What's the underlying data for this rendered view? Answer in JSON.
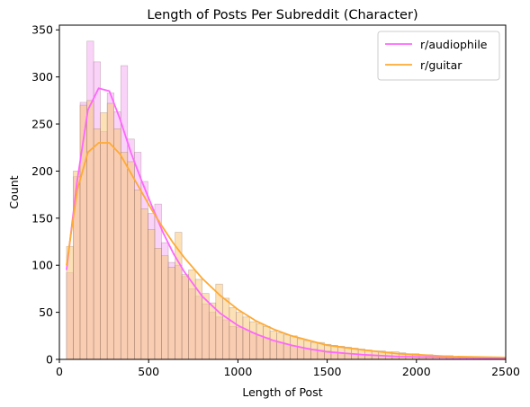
{
  "chart_data": {
    "type": "histogram",
    "title": "Length of Posts Per Subreddit (Character)",
    "xlabel": "Length of Post",
    "ylabel": "Count",
    "xlim": [
      0,
      2500
    ],
    "ylim": [
      0,
      355
    ],
    "xticks": [
      "0",
      "500",
      "1000",
      "1500",
      "2000",
      "2500"
    ],
    "yticks": [
      "0",
      "50",
      "100",
      "150",
      "200",
      "250",
      "300",
      "350"
    ],
    "legend_position": "top-right",
    "grid": false,
    "bin_start": 40,
    "bin_width": 38,
    "series": [
      {
        "name": "r/audiophile",
        "color": "#ff66ff",
        "fill": "#f6a8f4",
        "counts": [
          92,
          194,
          273,
          338,
          316,
          242,
          283,
          263,
          312,
          234,
          220,
          189,
          155,
          165,
          124,
          103,
          100,
          88,
          75,
          67,
          59,
          50,
          45,
          42,
          35,
          34,
          31,
          28,
          25,
          23,
          20,
          18,
          16,
          14,
          13,
          12,
          11,
          10,
          9,
          8,
          7,
          6,
          6,
          5,
          4,
          4,
          4,
          3,
          3,
          3,
          3,
          2,
          2,
          2,
          2,
          2,
          1,
          1,
          1,
          1,
          1,
          1,
          1,
          1,
          1,
          1
        ],
        "kde": [
          [
            40,
            95
          ],
          [
            100,
            190
          ],
          [
            160,
            265
          ],
          [
            220,
            288
          ],
          [
            280,
            285
          ],
          [
            340,
            255
          ],
          [
            400,
            220
          ],
          [
            460,
            190
          ],
          [
            520,
            162
          ],
          [
            580,
            135
          ],
          [
            640,
            112
          ],
          [
            700,
            93
          ],
          [
            800,
            67
          ],
          [
            900,
            49
          ],
          [
            1000,
            36
          ],
          [
            1100,
            27
          ],
          [
            1200,
            20
          ],
          [
            1300,
            15
          ],
          [
            1400,
            11
          ],
          [
            1500,
            8
          ],
          [
            1700,
            5
          ],
          [
            1900,
            3
          ],
          [
            2200,
            2
          ],
          [
            2500,
            1
          ]
        ]
      },
      {
        "name": "r/guitar",
        "color": "#ffaa33",
        "fill": "#f7c979",
        "counts": [
          120,
          200,
          270,
          275,
          245,
          262,
          272,
          245,
          220,
          210,
          180,
          160,
          138,
          118,
          110,
          98,
          135,
          90,
          95,
          85,
          70,
          60,
          80,
          65,
          55,
          50,
          45,
          40,
          38,
          35,
          30,
          28,
          26,
          25,
          22,
          20,
          18,
          18,
          16,
          15,
          14,
          13,
          12,
          11,
          10,
          9,
          9,
          8,
          8,
          7,
          6,
          6,
          5,
          5,
          4,
          4,
          4,
          3,
          3,
          3,
          3,
          2,
          2,
          2,
          2,
          2
        ],
        "kde": [
          [
            40,
            100
          ],
          [
            100,
            180
          ],
          [
            160,
            220
          ],
          [
            220,
            230
          ],
          [
            280,
            230
          ],
          [
            340,
            218
          ],
          [
            400,
            198
          ],
          [
            460,
            178
          ],
          [
            520,
            158
          ],
          [
            580,
            140
          ],
          [
            640,
            123
          ],
          [
            700,
            108
          ],
          [
            800,
            86
          ],
          [
            900,
            68
          ],
          [
            1000,
            53
          ],
          [
            1100,
            41
          ],
          [
            1200,
            32
          ],
          [
            1300,
            25
          ],
          [
            1400,
            20
          ],
          [
            1500,
            15
          ],
          [
            1700,
            10
          ],
          [
            1900,
            6
          ],
          [
            2200,
            3
          ],
          [
            2500,
            2
          ]
        ]
      }
    ]
  }
}
